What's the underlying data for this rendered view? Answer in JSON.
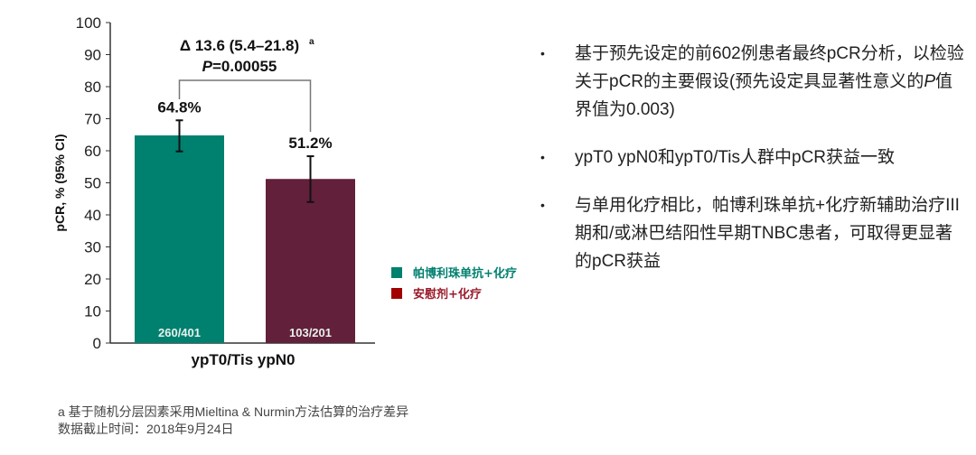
{
  "chart_data": {
    "type": "bar",
    "ylabel": "pCR, % (95% CI)",
    "ylim": [
      0,
      100
    ],
    "yticks": [
      0,
      10,
      20,
      30,
      40,
      50,
      60,
      70,
      80,
      90,
      100
    ],
    "categories": [
      "ypT0/Tis ypN0"
    ],
    "grid": false,
    "legend_position": "right",
    "series": [
      {
        "name": "帕博利珠单抗+化疗",
        "values": [
          64.8
        ],
        "ci": [
          59.8,
          69.5
        ],
        "label": "64.8%",
        "count": "260/401",
        "color": "#00806f",
        "legend_color": "#00806f"
      },
      {
        "name": "安慰剂+化疗",
        "values": [
          51.2
        ],
        "ci": [
          44.0,
          58.3
        ],
        "label": "51.2%",
        "count": "103/201",
        "color": "#62203a",
        "legend_color": "#a00000"
      }
    ],
    "annotation": {
      "delta": "Δ 13.6 (5.4–21.8)",
      "delta_sup": "a",
      "p_label": "P",
      "p_value": "=0.00055"
    }
  },
  "bullets": [
    {
      "text": "基于预先设定的前602例患者最终pCR分析，以检验关于pCR的主要假设(预先设定具显著性意义的",
      "italic": "P",
      "tail": "值界值为0.003)"
    },
    {
      "text": "ypT0 ypN0和ypT0/Tis人群中pCR获益一致"
    },
    {
      "text": "与单用化疗相比，帕博利珠单抗+化疗新辅助治疗III期和/或淋巴结阳性早期TNBC患者，可取得更显著的pCR获益"
    }
  ],
  "bullet_marker": "•",
  "footnotes": [
    "a 基于随机分层因素采用Mieltina & Nurmin方法估算的治疗差异",
    "数据截止时间：2018年9月24日"
  ]
}
